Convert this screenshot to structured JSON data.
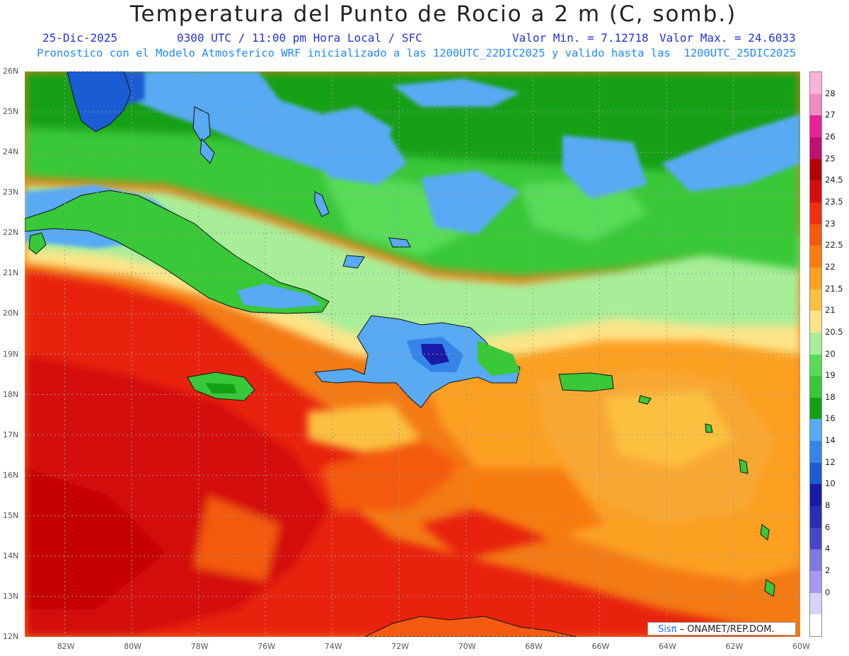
{
  "header": {
    "title": "Temperatura del Punto de Rocio a 2 m (C, somb.)",
    "date": "25-Dic-2025",
    "time": "0300 UTC / 11:00 pm Hora Local / SFC",
    "min_value": "Valor Min. = 7.12718",
    "max_value": "Valor Max. = 24.6033",
    "model_info": "Pronostico con el Modelo Atmosferico WRF inicializado a las 1200UTC_22DIC2025 y valido hasta las  1200UTC_25DIC2025"
  },
  "map": {
    "lon_labels": [
      "82W",
      "80W",
      "78W",
      "76W",
      "74W",
      "72W",
      "70W",
      "68W",
      "66W",
      "64W",
      "62W",
      "60W"
    ],
    "lat_labels": [
      "26N",
      "25N",
      "24N",
      "23N",
      "22N",
      "21N",
      "20N",
      "19N",
      "18N",
      "17N",
      "16N",
      "15N",
      "14N",
      "13N",
      "12N"
    ],
    "lon_range": [
      -83.2,
      -60.0
    ],
    "lat_range": [
      12.0,
      26.0
    ],
    "projection": "lat-lon, dotted graticule every 2 deg lon / 1 deg lat",
    "land_masses": [
      "Cuba",
      "Jamaica",
      "Hispaniola",
      "Puerto Rico",
      "Bahamas",
      "Lesser Antilles",
      "Florida",
      "Venezuela coast"
    ]
  },
  "colorbar": {
    "labels": [
      "28",
      "27",
      "26",
      "25",
      "24.5",
      "23.5",
      "23",
      "22.5",
      "22",
      "21.5",
      "21",
      "20.5",
      "20",
      "19",
      "18",
      "16",
      "14",
      "12",
      "10",
      "8",
      "6",
      "4",
      "2",
      "0"
    ],
    "colors": [
      "#f8b4d8",
      "#f08ac0",
      "#e8209a",
      "#c01070",
      "#b40000",
      "#d80e0e",
      "#ee3010",
      "#f45a10",
      "#f87c10",
      "#fca020",
      "#fcc040",
      "#fce488",
      "#a8ee98",
      "#58dc58",
      "#38c838",
      "#14a014",
      "#58aaf4",
      "#3484ea",
      "#1a5cd4",
      "#1a1aa8",
      "#2c2cb4",
      "#4646c8",
      "#7a7ae0",
      "#a898f0",
      "#d4d4f8",
      "#ffffff"
    ]
  },
  "credit": {
    "brand": "Sisπ",
    "org": "– ONAMET/REP.DOM."
  }
}
